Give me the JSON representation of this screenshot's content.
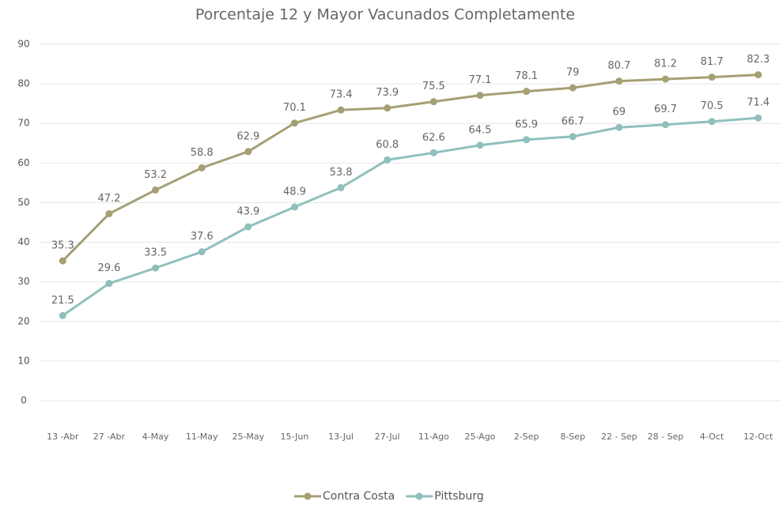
{
  "chart_data": {
    "type": "line",
    "title": "Porcentaje 12 y Mayor Vacunados Completamente",
    "categories": [
      "13 -Abr",
      "27 -Abr",
      "4-May",
      "11-May",
      "25-May",
      "15-Jun",
      "13-Jul",
      "27-Jul",
      "11-Ago",
      "25-Ago",
      "2-Sep",
      "8-Sep",
      "22 - Sep",
      "28 - Sep",
      "4-Oct",
      "12-Oct"
    ],
    "series": [
      {
        "name": "Contra Costa",
        "color": "#a59f73",
        "values": [
          35.3,
          47.2,
          53.2,
          58.8,
          62.9,
          70.1,
          73.4,
          73.9,
          75.5,
          77.1,
          78.1,
          79,
          80.7,
          81.2,
          81.7,
          82.3
        ]
      },
      {
        "name": "Pittsburg",
        "color": "#8fc0bd",
        "values": [
          21.5,
          29.6,
          33.5,
          37.6,
          43.9,
          48.9,
          53.8,
          60.8,
          62.6,
          64.5,
          65.9,
          66.7,
          69,
          69.7,
          70.5,
          71.4
        ]
      }
    ],
    "ylim": [
      0,
      90
    ],
    "yticks": [
      0,
      10,
      20,
      30,
      40,
      50,
      60,
      70,
      80,
      90
    ],
    "grid": true,
    "legend": "bottom"
  }
}
